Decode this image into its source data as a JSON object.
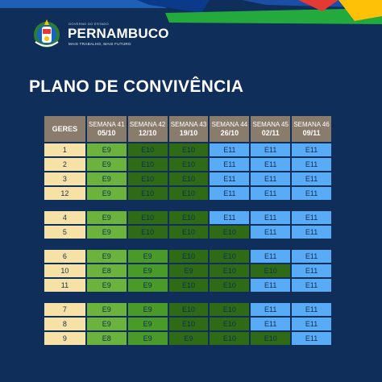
{
  "header": {
    "brand_sub": "GOVERNO DO ESTADO",
    "brand": "PERNAMBUCO",
    "tagline": "MAIS TRABALHO, MAIS FUTURO"
  },
  "title": "PLANO DE CONVIVÊNCIA",
  "colors": {
    "background": "#0f2e5a",
    "header_cell": "#8a7c6d",
    "geres_cell": "#f6e2a6",
    "light_green": "#6cb33d",
    "dark_green": "#2f6b16",
    "mid_green": "#4a9a2a",
    "blue": "#5aabf5"
  },
  "table": {
    "first_header": "GERES",
    "columns": [
      {
        "week": "SEMANA 41",
        "date": "05/10"
      },
      {
        "week": "SEMANA 42",
        "date": "12/10"
      },
      {
        "week": "SEMANA 43",
        "date": "19/10"
      },
      {
        "week": "SEMANA 44",
        "date": "26/10"
      },
      {
        "week": "SEMANA 45",
        "date": "02/11"
      },
      {
        "week": "SEMANA 46",
        "date": "09/11"
      }
    ],
    "groups": [
      [
        {
          "geres": "1",
          "cells": [
            "E9",
            "E10",
            "E10",
            "E11",
            "E11",
            "E11"
          ]
        },
        {
          "geres": "2",
          "cells": [
            "E9",
            "E10",
            "E10",
            "E11",
            "E11",
            "E11"
          ]
        },
        {
          "geres": "3",
          "cells": [
            "E9",
            "E10",
            "E10",
            "E11",
            "E11",
            "E11"
          ]
        },
        {
          "geres": "12",
          "cells": [
            "E9",
            "E10",
            "E10",
            "E11",
            "E11",
            "E11"
          ]
        }
      ],
      [
        {
          "geres": "4",
          "cells": [
            "E9",
            "E10",
            "E10",
            "E11",
            "E11",
            "E11"
          ]
        },
        {
          "geres": "5",
          "cells": [
            "E9",
            "E10",
            "E10",
            "E10",
            "E11",
            "E11"
          ]
        }
      ],
      [
        {
          "geres": "6",
          "cells": [
            "E9",
            "E9",
            "E10",
            "E10",
            "E11",
            "E11"
          ]
        },
        {
          "geres": "10",
          "cells": [
            "E8",
            "E9",
            "E9",
            "E10",
            "E10",
            "E11"
          ]
        },
        {
          "geres": "11",
          "cells": [
            "E9",
            "E9",
            "E10",
            "E10",
            "E11",
            "E11"
          ]
        }
      ],
      [
        {
          "geres": "7",
          "cells": [
            "E9",
            "E9",
            "E10",
            "E10",
            "E11",
            "E11"
          ]
        },
        {
          "geres": "8",
          "cells": [
            "E9",
            "E9",
            "E10",
            "E10",
            "E11",
            "E11"
          ]
        },
        {
          "geres": "9",
          "cells": [
            "E8",
            "E9",
            "E9",
            "E10",
            "E10",
            "E11"
          ]
        }
      ]
    ]
  }
}
